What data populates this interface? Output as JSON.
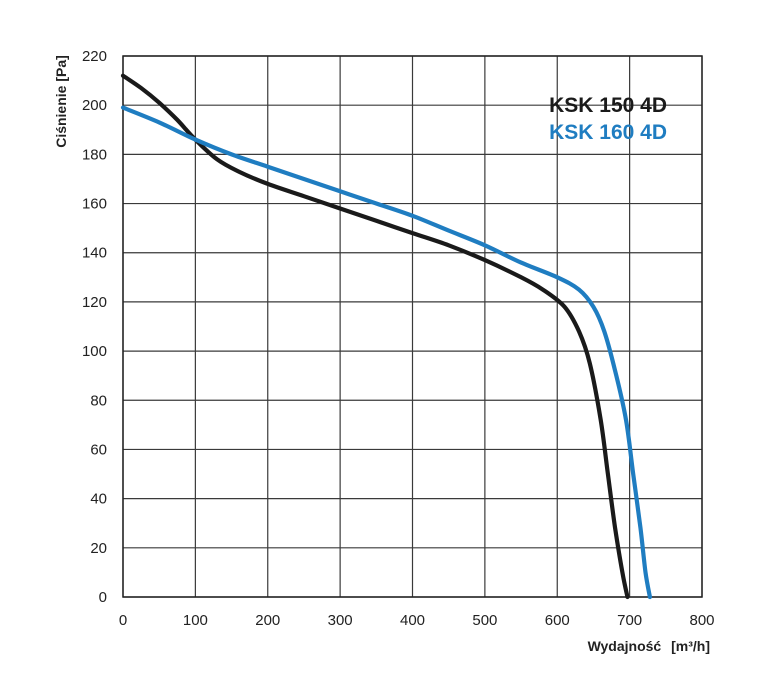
{
  "chart_data": {
    "type": "line",
    "title": "",
    "xlabel": "Wydajność",
    "xunit": "[m³/h]",
    "ylabel": "Ciśnienie [Pa]",
    "xlim": [
      0,
      800
    ],
    "ylim": [
      0,
      220
    ],
    "x_ticks": [
      0,
      100,
      200,
      300,
      400,
      500,
      600,
      700,
      800
    ],
    "y_ticks": [
      0,
      20,
      40,
      60,
      80,
      100,
      120,
      140,
      160,
      180,
      200,
      220
    ],
    "grid": true,
    "legend_position": "top-right",
    "series": [
      {
        "name": "KSK 150 4D",
        "color": "#1a1a1a",
        "points": [
          [
            0,
            212
          ],
          [
            25,
            207
          ],
          [
            50,
            201
          ],
          [
            75,
            194
          ],
          [
            100,
            186
          ],
          [
            130,
            178
          ],
          [
            160,
            173
          ],
          [
            200,
            168
          ],
          [
            250,
            163
          ],
          [
            300,
            158
          ],
          [
            350,
            153
          ],
          [
            400,
            148
          ],
          [
            450,
            143
          ],
          [
            500,
            137
          ],
          [
            550,
            130
          ],
          [
            580,
            125
          ],
          [
            610,
            118
          ],
          [
            630,
            108
          ],
          [
            645,
            95
          ],
          [
            660,
            72
          ],
          [
            670,
            50
          ],
          [
            680,
            28
          ],
          [
            690,
            10
          ],
          [
            697,
            0
          ]
        ]
      },
      {
        "name": "KSK 160 4D",
        "color": "#1f7dc1",
        "points": [
          [
            0,
            199
          ],
          [
            50,
            193
          ],
          [
            100,
            186
          ],
          [
            150,
            180
          ],
          [
            200,
            175
          ],
          [
            250,
            170
          ],
          [
            300,
            165
          ],
          [
            350,
            160
          ],
          [
            400,
            155
          ],
          [
            450,
            149
          ],
          [
            500,
            143
          ],
          [
            550,
            136
          ],
          [
            600,
            130
          ],
          [
            630,
            125
          ],
          [
            650,
            118
          ],
          [
            665,
            108
          ],
          [
            680,
            92
          ],
          [
            695,
            72
          ],
          [
            705,
            50
          ],
          [
            715,
            28
          ],
          [
            722,
            10
          ],
          [
            728,
            0
          ]
        ]
      }
    ]
  }
}
